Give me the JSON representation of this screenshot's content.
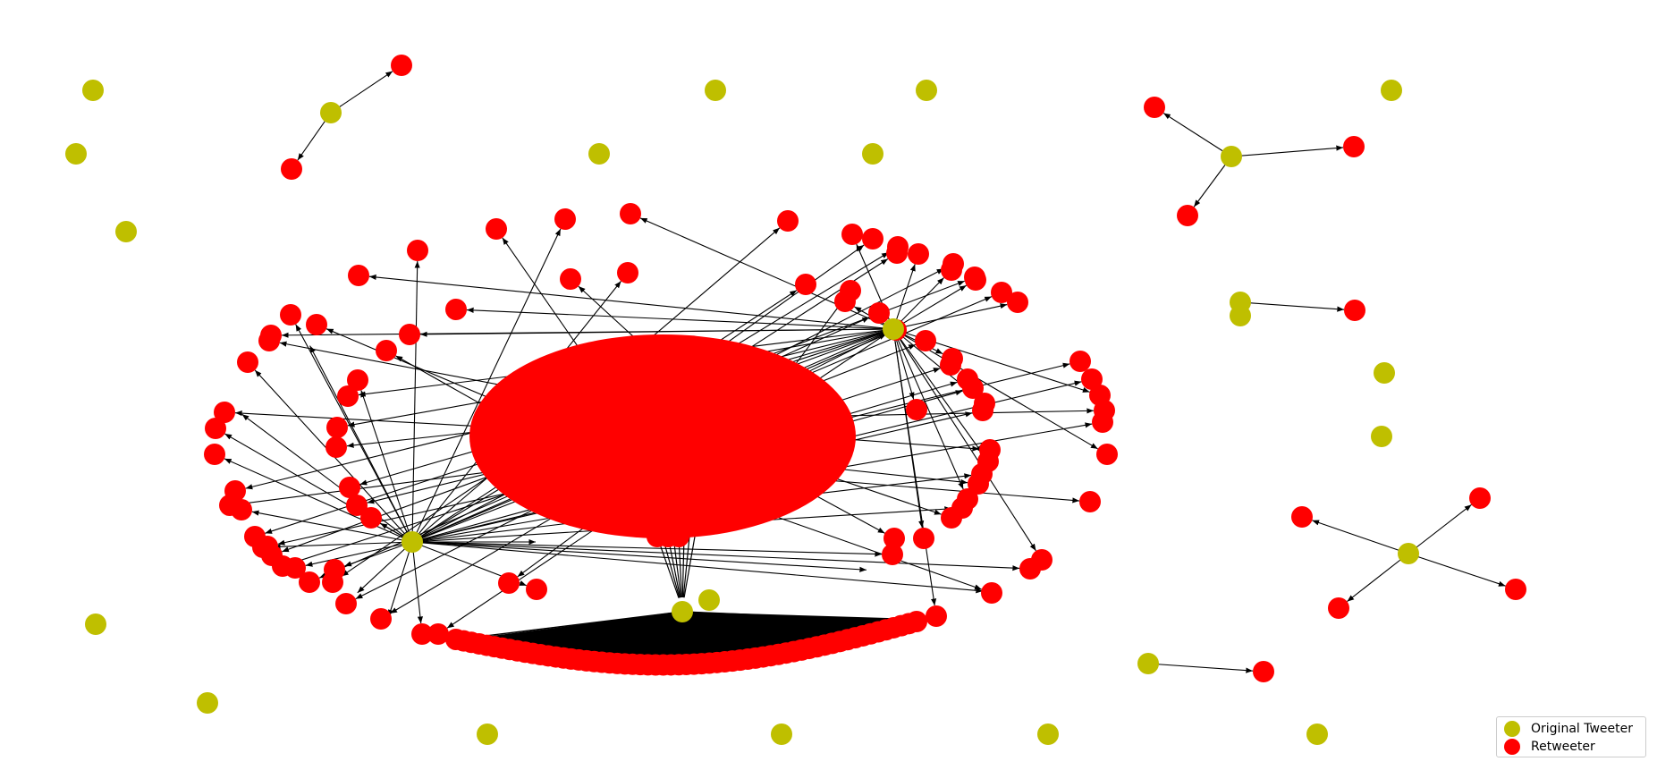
{
  "colors": {
    "original": "#bfbf00",
    "retweeter": "#ff0000",
    "edge": "#000000",
    "background": "#ffffff"
  },
  "legend": {
    "original_label": "Original Tweeter",
    "retweeter_label": "Retweeter"
  },
  "graph": {
    "node_types": [
      "Original Tweeter",
      "Retweeter"
    ],
    "directed": true,
    "components": [
      {
        "hub": "Original Tweeter",
        "retweeters": 2
      },
      {
        "hub": "Original Tweeter",
        "retweeters": 3
      },
      {
        "hub": "Original Tweeter",
        "retweeters": 1
      },
      {
        "hub": "Original Tweeter",
        "retweeters": 4
      },
      {
        "hub": "Original Tweeter",
        "retweeters": 1
      },
      {
        "hub": "Original Tweeter",
        "retweeters": "many (shared large cluster)"
      }
    ],
    "isolated_original_tweeters": 18
  }
}
